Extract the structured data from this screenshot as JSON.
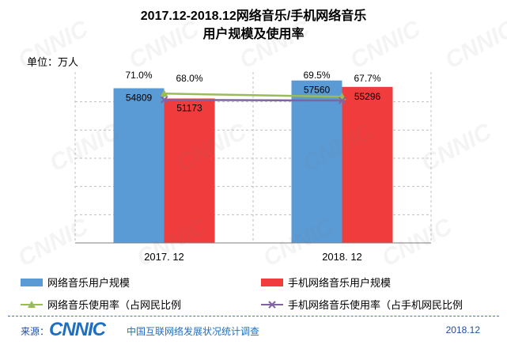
{
  "header": {
    "title_line1": "2017.12-2018.12网络音乐/手机网络音乐",
    "title_line2": "用户规模及使用率",
    "unit": "单位：万人"
  },
  "chart_data": {
    "type": "bar",
    "title": "2017.12-2018.12网络音乐/手机网络音乐用户规模及使用率",
    "categories": [
      "2017. 12",
      "2018. 12"
    ],
    "series": [
      {
        "name": "网络音乐用户规模",
        "kind": "bar",
        "color": "#5b9bd5",
        "values": [
          54809,
          57560
        ]
      },
      {
        "name": "手机网络音乐用户规模",
        "kind": "bar",
        "color": "#f03c3c",
        "values": [
          51173,
          55296
        ]
      },
      {
        "name": "网络音乐使用率（占网民比例",
        "kind": "line",
        "color": "#9bbb59",
        "marker": "triangle",
        "values": [
          71.0,
          69.5
        ],
        "labels": [
          "71.0%",
          "69.5%"
        ]
      },
      {
        "name": "手机网络音乐使用率（占手机网民比例",
        "kind": "line",
        "color": "#8064a2",
        "marker": "x",
        "values": [
          68.0,
          67.7
        ],
        "labels": [
          "68.0%",
          "67.7%"
        ]
      }
    ],
    "ylim": [
      0,
      60000
    ],
    "grid": true,
    "legend_position": "bottom"
  },
  "footer": {
    "source_label": "来源：",
    "logo_text": "CNNIC",
    "org": "中国互联网络发展状况统计调查",
    "date": "2018.12"
  },
  "watermark": "CNNIC"
}
